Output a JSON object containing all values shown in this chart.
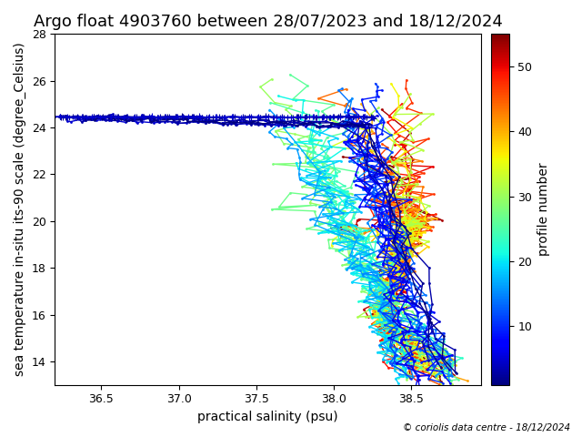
{
  "title": "Argo float 4903760 between 28/07/2023 and 18/12/2024",
  "xlabel": "practical salinity (psu)",
  "ylabel": "sea temperature in-situ its-90 scale (degree_Celsius)",
  "colorbar_label": "profile number",
  "cbar_ticks": [
    10,
    20,
    30,
    40,
    50
  ],
  "xlim": [
    36.2,
    38.95
  ],
  "ylim": [
    13.0,
    28.0
  ],
  "xticks": [
    36.5,
    37.0,
    37.5,
    38.0,
    38.5
  ],
  "yticks": [
    14,
    16,
    18,
    20,
    22,
    24,
    26,
    28
  ],
  "n_profiles": 55,
  "colormap": "jet",
  "vmin": 1,
  "vmax": 55,
  "footer_text": "© coriolis data centre - 18/12/2024",
  "title_fontsize": 13,
  "label_fontsize": 10,
  "marker": ".",
  "markersize": 4,
  "linewidth": 1.0
}
